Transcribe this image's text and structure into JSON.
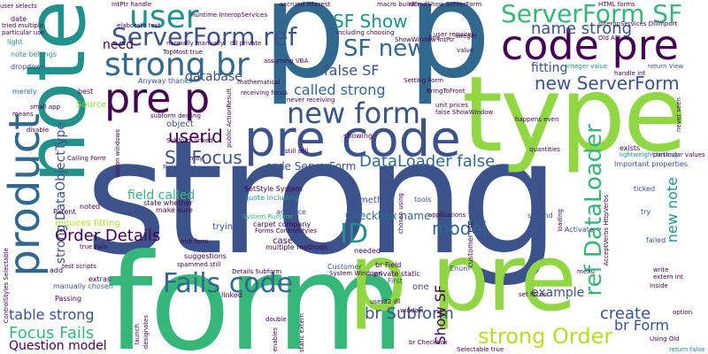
{
  "palette": {
    "dark_blue": "#3b528b",
    "navy": "#31688e",
    "purple": "#440154",
    "violet": "#482878",
    "teal": "#21918c",
    "green": "#35b779",
    "lime": "#90d743",
    "yellow_green": "#b5de2b",
    "background": "#ffffff"
  },
  "words": {
    "strong": "strong",
    "form": "form",
    "type": "type",
    "p1": "p",
    "p2": "p",
    "note": "note",
    "p_pre": "p pre",
    "code_pre": "code pre",
    "pre_code": "pre code",
    "pre_p": "pre p",
    "strong_br": "strong br",
    "new_form": "new form",
    "product": "product",
    "user": "user",
    "serverform_sf": "ServerForm SF",
    "serverform_ref": "ServerForm ref",
    "new_serverform": "new ServerForm",
    "fails_code": "Fails code",
    "strong_order": "strong Order",
    "sf_show": "SF Show",
    "sf_new": "SF new",
    "name_strong": "name strong",
    "id": "ID",
    "model": "model",
    "ref_dataloader": "ref DataLoader",
    "dataloader_false": "DataLoader false",
    "sf_focus": "SF Focus",
    "userid": "userid",
    "called_strong": "called strong",
    "false_sf": "false SF",
    "br_subform": "br Subform",
    "create": "create",
    "br_form": "br Form",
    "show_sf": "Show SF",
    "focus_fails": "Focus Fails",
    "table_strong": "table strong",
    "question_model": "Question model",
    "order_details": "Order Details",
    "strong_dataobjecttype": "strong DataObjectType",
    "field_called": "field called",
    "database": "database",
    "need": "need",
    "fitting": "fitting",
    "new_note": "new note",
    "code_serverform": "code ServerForm",
    "checkbox_name": "Checkbox name",
    "example": "example",
    "date": "date",
    "light": "light",
    "merely": "merely",
    "dropdown": "dropdown",
    "note_belongs": "note belongs",
    "best": "best",
    "source": "Source",
    "object": "object",
    "anyway_thanks": "Anyway thanks",
    "state_whether": "state whether",
    "make_sure": "make sure",
    "requires_fitting": "requires fitting",
    "trying": "trying",
    "carpet_company": "carpet company",
    "quote_including": "quote including",
    "setstyle_system": "SetStyle System",
    "advance": "advance",
    "suggestions": "suggestions",
    "case": "case",
    "multiple_methods": "multiple methods",
    "method": "method",
    "tools": "tools",
    "customer_etc": "customer etc",
    "exists": "exists",
    "important_properties": "Important properties",
    "ticked": "ticked",
    "activate": "Activate",
    "second": "second",
    "try": "try",
    "failed": "failed",
    "enum": "Enum",
    "customer": "Customer",
    "br_field": "br Field",
    "private_static": "private static",
    "first": "First",
    "passing": "Passing",
    "extras": "extras",
    "manually_chosen": "manually chosen",
    "add": "add",
    "parent": "Parent",
    "noted": "noted",
    "linked": "linked",
    "showing": "showing",
    "user_selects": "user selects",
    "tried_multiple": "tried multiple",
    "particular_use": "particular use",
    "user_requires": "user requires",
    "including_choosing": "including choosing",
    "assuming_vba": "assuming VBA",
    "integer_value": "integer value",
    "return_view": "return View",
    "handle_int": "handle int",
    "lightweight_testing": "lightweight testing",
    "quantities": "quantities",
    "subform_dealing": "subform dealing",
    "subform_linked": "Subform linked",
    "calling_form": "Calling Form",
    "field_name": "Field name",
    "details_subform": "Details Subform",
    "spammed_still": "spammed still",
    "still_still": "still still",
    "br_checkbox": "br Checkbox",
    "selectable_true": "Selectable true",
    "using_old": "Using Old",
    "return_false": "return false",
    "inside": "Inside",
    "extern_int": "extern int",
    "write": "write",
    "set_focus": "set focus",
    "option": "option",
    "window": "window",
    "user32_dll": "user32 dll",
    "bringtofront": "BringToFront",
    "macro_builder": "macro builder",
    "elaborate_test": "elaborate test",
    "normally_manually": "normally manually",
    "topmost_true": "TopMost true",
    "receiving_focus": "receiving focus",
    "never_receiving": "never receiving",
    "unit_prices": "unit prices",
    "false_showwindow": "false ShowWindow",
    "happens_even": "happens even",
    "integer": "integer",
    "value": "value",
    "fine": "fine",
    "old_api": "Old API",
    "interopservices_dllimport": "InteropServices DllImport",
    "intptr_handle": "IntPtr handle",
    "runtime_interopservices": "Runtime InteropServices",
    "cmdshow_serverform": "nCmdShow ServerForm",
    "accrued_interest": "accrued interest",
    "dll_private": "dll private",
    "html_forms": "HTML forms",
    "needed": "needed",
    "one": "one",
    "means": "means",
    "disable": "disable",
    "small_app": "small app",
    "true_fails": "true Fails",
    "test_scripts": "test scripts",
    "forms_controlstyles": "Forms ControlStyles",
    "system_windows": "System Windows",
    "system_runtime": "System Runtime",
    "mdi_form": "mdi form",
    "may": "may",
    "controlstyles_selectable": "ControlStyles Selectable",
    "option_windows": "option windows",
    "public_actionresult": "public ActionResult",
    "acceptverbs_httpverbs": "AcceptVerbs HttpVerbs",
    "chosen_using": "chosen using",
    "applications": "applications",
    "loading": "loading",
    "showwindow_intptr": "ShowWindow IntPtr",
    "setting_form": "Setting Form",
    "mathematical": "mathematical",
    "particular_values": "particular values",
    "never_seen": "never seen",
    "launch": "launch",
    "designates": "designates",
    "static_extern": "static extern",
    "menu": "menu",
    "double": "double",
    "enables": "enables"
  }
}
